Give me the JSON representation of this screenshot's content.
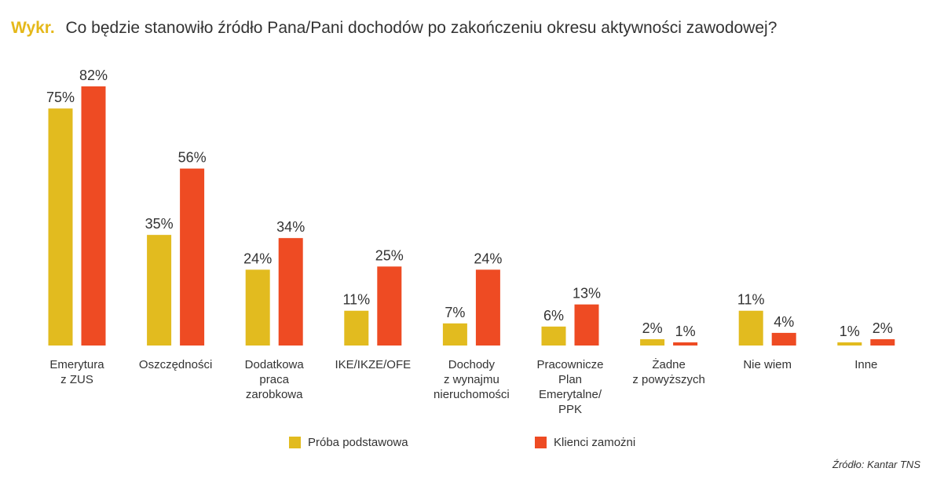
{
  "header": {
    "prefix": "Wykr.",
    "title": "Co będzie stanowiło źródło Pana/Pani dochodów po zakończeniu okresu aktywności zawodowej?"
  },
  "colors": {
    "prefix": "#E5B81A",
    "series_1": "#E2BB1F",
    "series_2": "#EE4B23"
  },
  "chart_data": {
    "type": "bar",
    "categories": [
      [
        "Emerytura",
        "z ZUS"
      ],
      [
        "Oszczędności"
      ],
      [
        "Dodatkowa",
        "praca",
        "zarobkowa"
      ],
      [
        "IKE/IKZE/OFE"
      ],
      [
        "Dochody",
        "z wynajmu",
        "nieruchomości"
      ],
      [
        "Pracownicze",
        "Plan",
        "Emerytalne/",
        "PPK"
      ],
      [
        "Żadne",
        "z powyższych"
      ],
      [
        "Nie wiem"
      ],
      [
        "Inne"
      ]
    ],
    "series": [
      {
        "name": "Próba podstawowa",
        "values": [
          75,
          35,
          24,
          11,
          7,
          6,
          2,
          11,
          1
        ]
      },
      {
        "name": "Klienci zamożni",
        "values": [
          82,
          56,
          34,
          25,
          24,
          13,
          1,
          4,
          2
        ]
      }
    ],
    "value_suffix": "%",
    "ylim": [
      0,
      82
    ],
    "grid": false,
    "legend_position": "bottom"
  },
  "source": "Źródło: Kantar TNS"
}
